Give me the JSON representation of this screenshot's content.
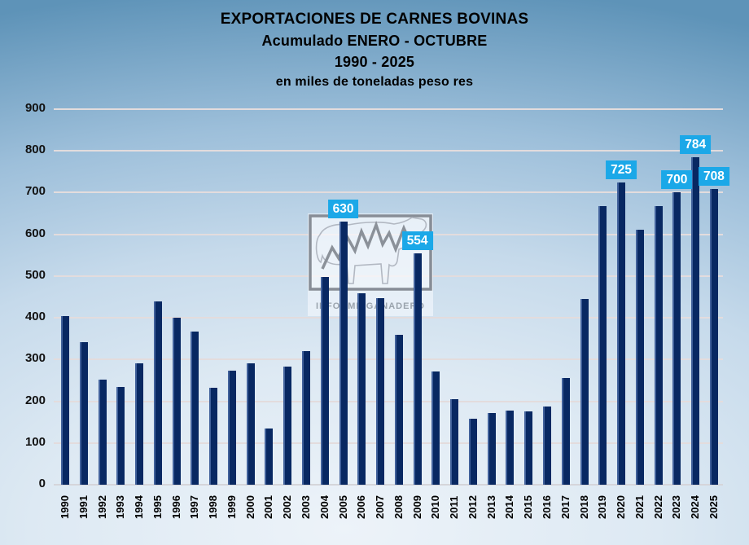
{
  "title": {
    "line1": "EXPORTACIONES DE CARNES BOVINAS",
    "line2": "Acumulado ENERO - OCTUBRE",
    "line3": "1990 - 2025",
    "line4": "en miles de toneladas peso res"
  },
  "watermark": {
    "text": "INFORME GANADERO"
  },
  "colors": {
    "bar": "#082862",
    "bar_edge_highlight": "#41619b",
    "callout_bg": "#1ba8e8",
    "callout_text": "#ffffff",
    "gridline": "#e3dcdd",
    "baseline": "#d5d5da",
    "axis_text": "#121212",
    "title_text": "#000000",
    "bg_corner": "#5e93b8",
    "bg_center": "#edf3f9"
  },
  "chart_data": {
    "type": "bar",
    "title": "EXPORTACIONES DE CARNES BOVINAS",
    "subtitle": "Acumulado ENERO - OCTUBRE 1990 - 2025",
    "units": "en miles de toneladas peso res",
    "xlabel": "",
    "ylabel": "miles de toneladas peso res",
    "ylim": [
      0,
      900
    ],
    "yticks": [
      0,
      100,
      200,
      300,
      400,
      500,
      600,
      700,
      800,
      900
    ],
    "grid": true,
    "legend": "none",
    "categories": [
      "1990",
      "1991",
      "1992",
      "1993",
      "1994",
      "1995",
      "1996",
      "1997",
      "1998",
      "1999",
      "2000",
      "2001",
      "2002",
      "2003",
      "2004",
      "2005",
      "2006",
      "2007",
      "2008",
      "2009",
      "2010",
      "2011",
      "2012",
      "2013",
      "2014",
      "2015",
      "2016",
      "2017",
      "2018",
      "2019",
      "2020",
      "2021",
      "2022",
      "2023",
      "2024",
      "2025"
    ],
    "values": [
      404,
      342,
      251,
      235,
      291,
      439,
      401,
      367,
      233,
      274,
      291,
      134,
      284,
      320,
      497,
      630,
      458,
      447,
      359,
      554,
      271,
      205,
      158,
      172,
      177,
      175,
      188,
      256,
      446,
      667,
      725,
      612,
      667,
      700,
      784,
      708
    ],
    "data_labels": [
      {
        "year": "2005",
        "value": 630
      },
      {
        "year": "2009",
        "value": 554
      },
      {
        "year": "2020",
        "value": 725
      },
      {
        "year": "2023",
        "value": 700
      },
      {
        "year": "2024",
        "value": 784
      },
      {
        "year": "2025",
        "value": 708
      }
    ]
  }
}
